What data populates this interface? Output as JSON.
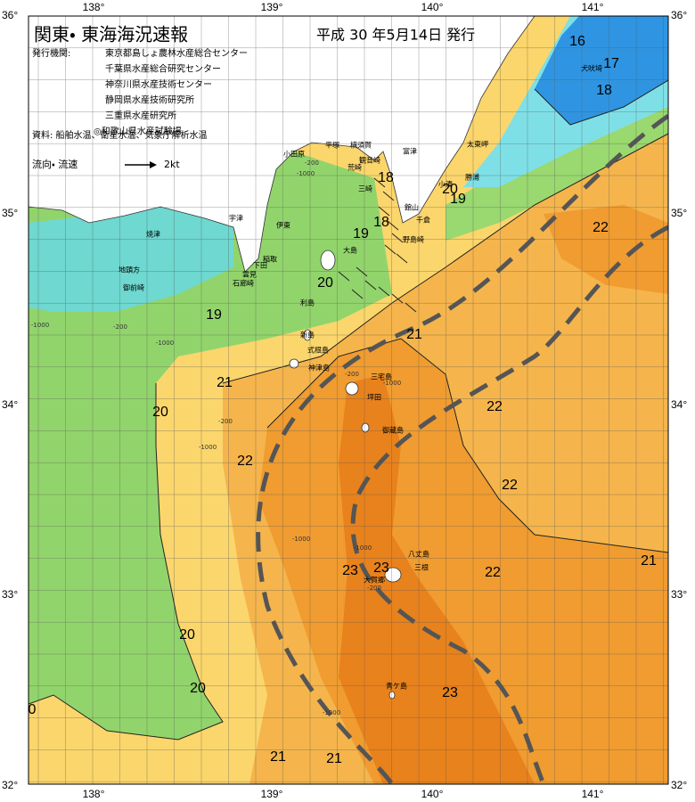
{
  "header": {
    "title": "関東・ 東海海況速報",
    "date": "平成 30 年5月14日 発行"
  },
  "issuers": {
    "label": "発行機関:",
    "names": [
      "東京都島しょ農林水産総合センター",
      "千葉県水産総合研究センター",
      "神奈川県水産技術センター",
      "静岡県水産技術研究所",
      "三重県水産研究所",
      "◎和歌山県水産試験場"
    ]
  },
  "source": "資料: 船舶水温、衛星水温、気象庁解析水温",
  "legend": {
    "label": "流向・ 流速",
    "scale": "2kt"
  },
  "lon_labels": [
    "138°",
    "139°",
    "140°",
    "141°"
  ],
  "lat_labels": [
    "36°",
    "35°",
    "34°",
    "33°",
    "32°"
  ],
  "isotherm_labels": [
    16,
    17,
    18,
    18,
    20,
    19,
    18,
    19,
    20,
    19,
    21,
    21,
    20,
    22,
    22,
    22,
    22,
    23,
    23,
    22,
    21,
    20,
    20,
    23,
    21,
    21,
    0
  ],
  "place_names": [
    "小田原",
    "平塚",
    "横須賀",
    "観音崎",
    "富津",
    "荒崎",
    "三崎",
    "館山",
    "千倉",
    "野島崎",
    "小湊",
    "勝浦",
    "太東岬",
    "犬吠埼",
    "宇津",
    "伊東",
    "稲取",
    "下田",
    "雲見",
    "石廊崎",
    "焼津",
    "地頭方",
    "御前崎",
    "大島",
    "利島",
    "新島",
    "式根島",
    "神津島",
    "三宅島",
    "坪田",
    "御蔵島",
    "八丈島",
    "三根",
    "大賀郷",
    "青ケ島"
  ],
  "depth_labels": [
    -1000,
    -200,
    -1000,
    -200,
    -1000,
    -200,
    -1000,
    -1000,
    -200,
    -1000,
    -1000,
    -200,
    -1000
  ]
}
